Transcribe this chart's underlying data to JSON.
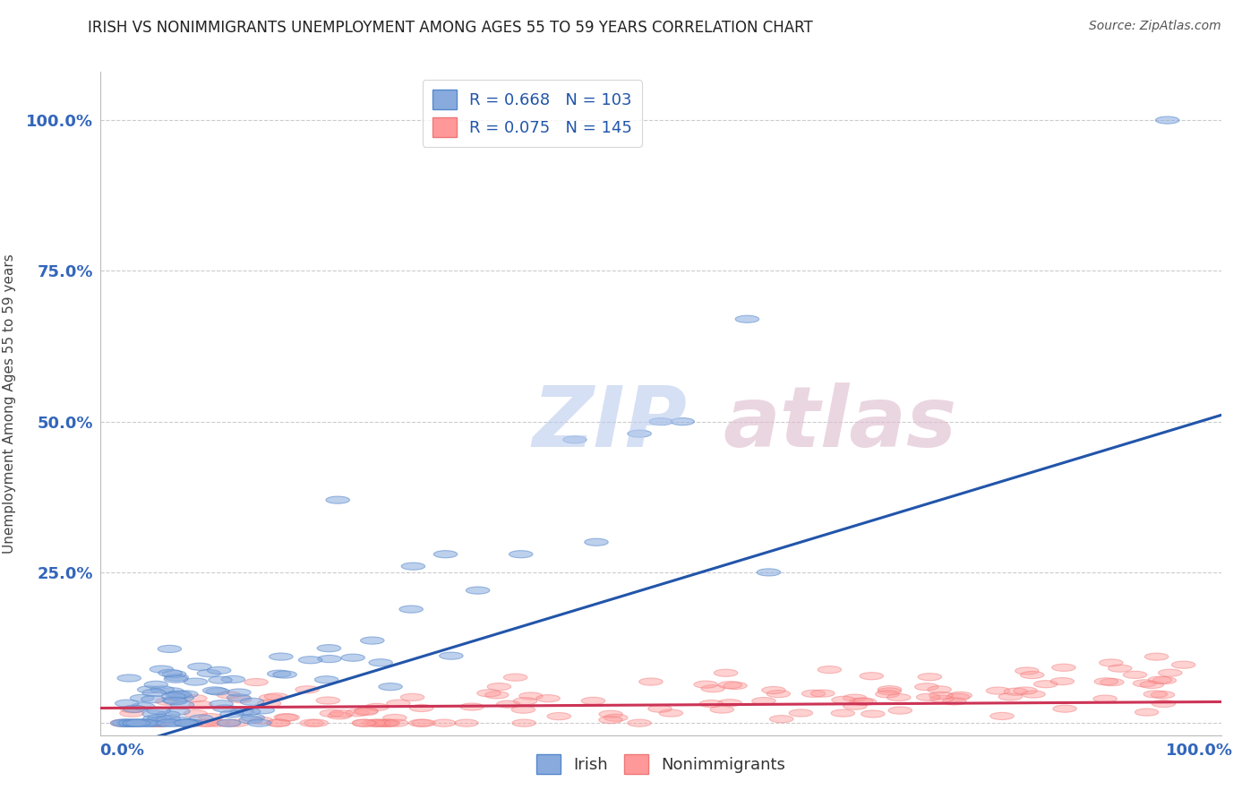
{
  "title": "IRISH VS NONIMMIGRANTS UNEMPLOYMENT AMONG AGES 55 TO 59 YEARS CORRELATION CHART",
  "source": "Source: ZipAtlas.com",
  "ylabel": "Unemployment Among Ages 55 to 59 years",
  "xlim": [
    -0.02,
    1.02
  ],
  "ylim": [
    -0.02,
    1.08
  ],
  "xtick_positions": [
    0.0,
    1.0
  ],
  "xticklabels": [
    "0.0%",
    "100.0%"
  ],
  "ytick_positions": [
    0.0,
    0.25,
    0.5,
    0.75,
    1.0
  ],
  "ytick_labels": [
    "",
    "25.0%",
    "50.0%",
    "75.0%",
    "100.0%"
  ],
  "irish_R": 0.668,
  "irish_N": 103,
  "nonimm_R": 0.075,
  "nonimm_N": 145,
  "irish_color": "#88AADD",
  "nonimm_color": "#FF9999",
  "irish_edge_color": "#5588CC",
  "nonimm_edge_color": "#EE7777",
  "irish_line_color": "#2255AA",
  "nonimm_line_color": "#CC3355",
  "background_color": "#FFFFFF",
  "grid_color": "#CCCCCC",
  "title_color": "#222222",
  "title_fontsize": 12,
  "source_color": "#555555",
  "tick_color": "#3366BB",
  "watermark_zip_color": "#BBCCEE",
  "watermark_atlas_color": "#DDBBCC"
}
